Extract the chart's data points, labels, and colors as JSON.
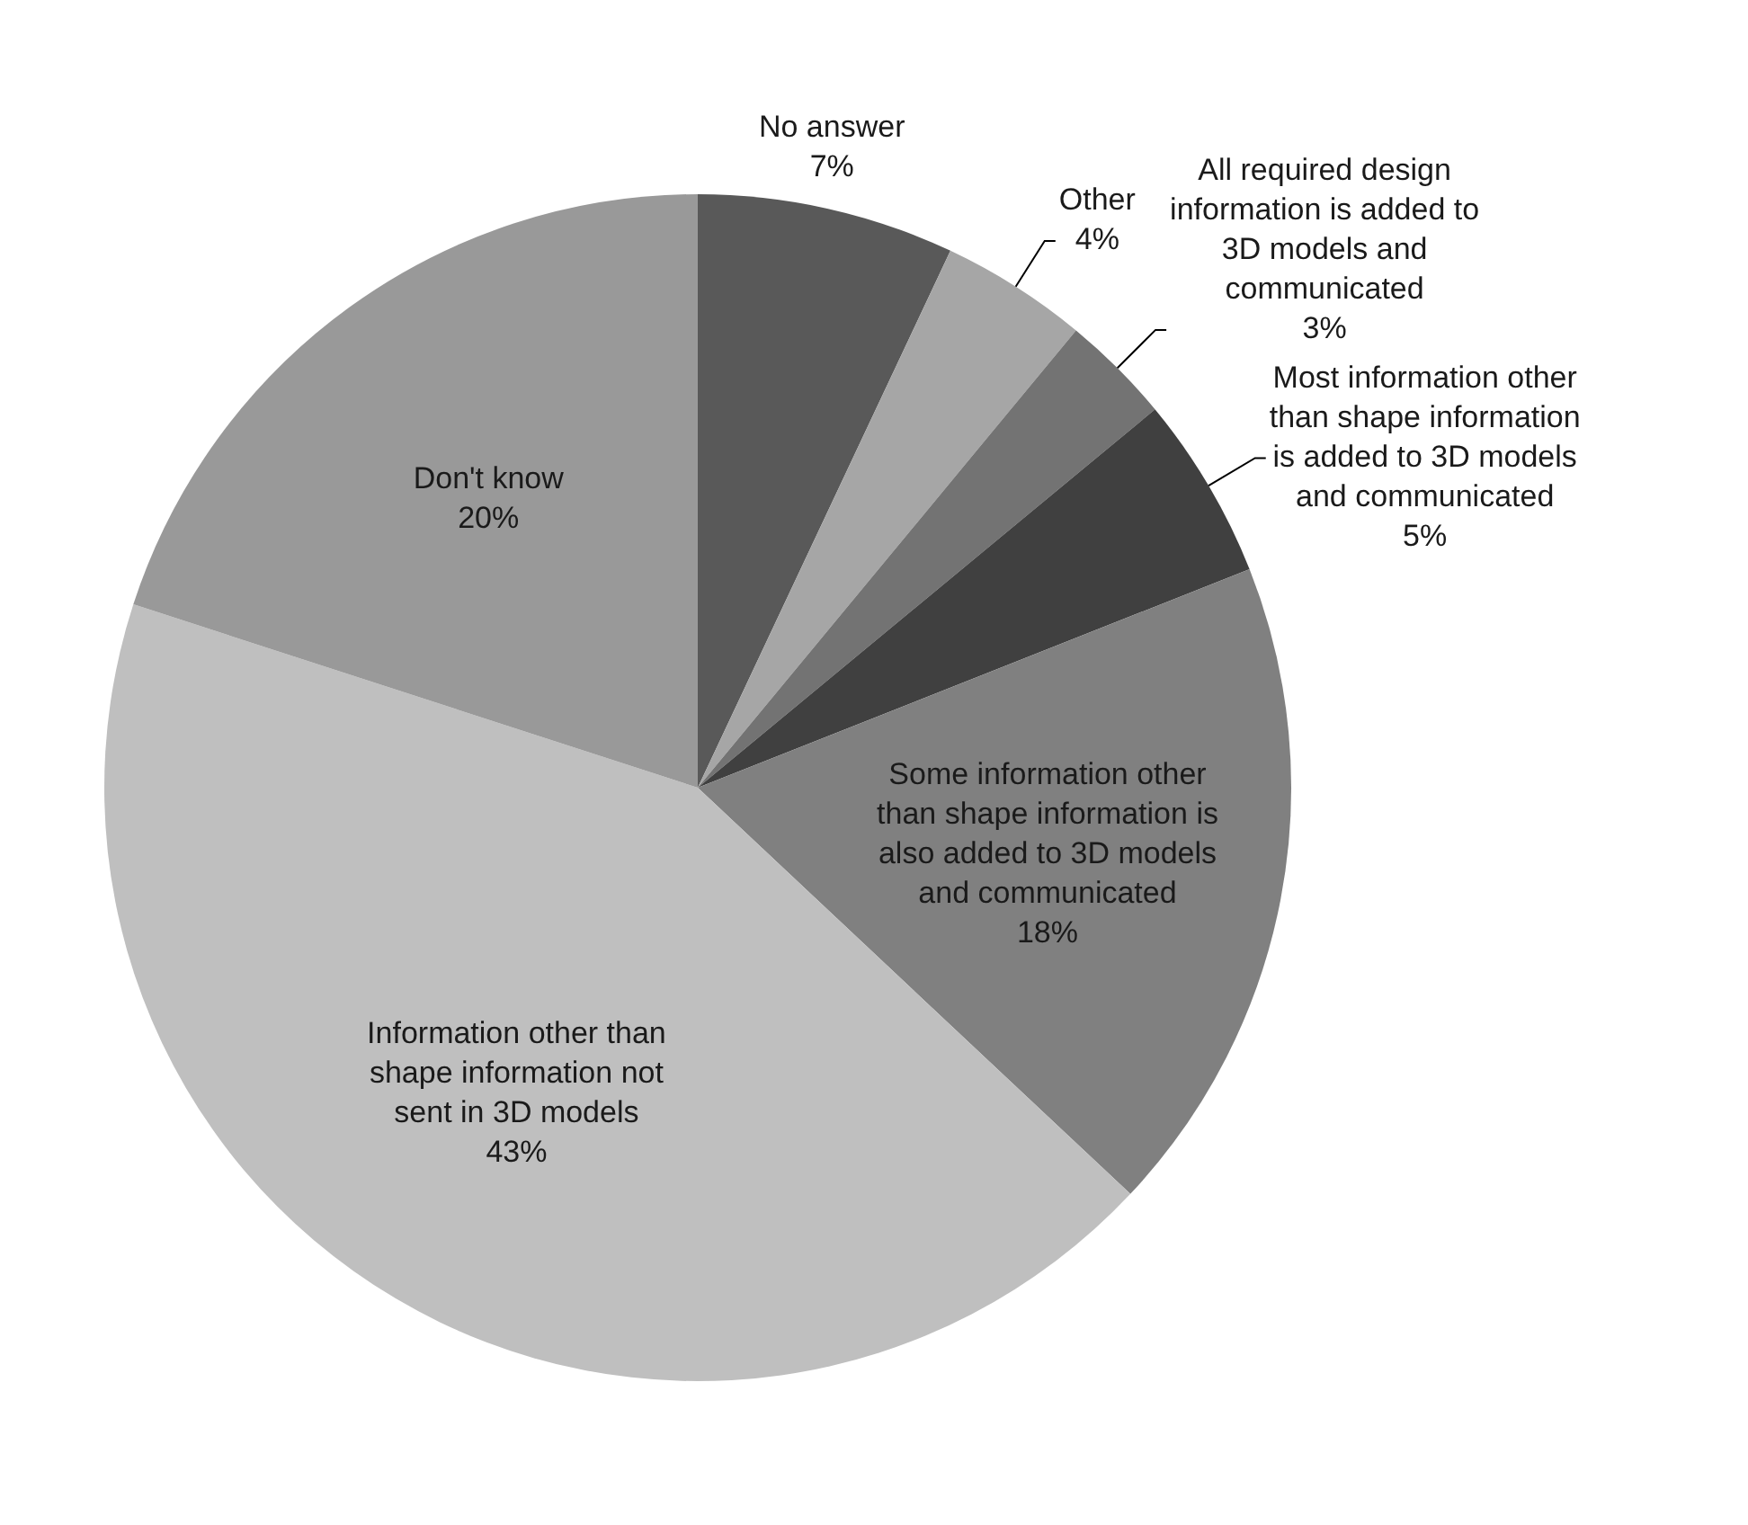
{
  "chart_data": {
    "type": "pie",
    "categories": [
      "No answer",
      "Other",
      "All required design information is added to 3D models and communicated",
      "Most information other than shape information is added to 3D models and communicated",
      "Some information other than shape information is also added to 3D models and communicated",
      "Information other than shape information not sent in 3D models",
      "Don't know"
    ],
    "values": [
      7,
      4,
      3,
      5,
      18,
      43,
      20
    ],
    "colors": [
      "#595959",
      "#a6a6a6",
      "#737373",
      "#404040",
      "#808080",
      "#bfbfbf",
      "#999999"
    ],
    "value_labels": [
      "7%",
      "4%",
      "3%",
      "5%",
      "18%",
      "43%",
      "20%"
    ],
    "legend": false
  }
}
